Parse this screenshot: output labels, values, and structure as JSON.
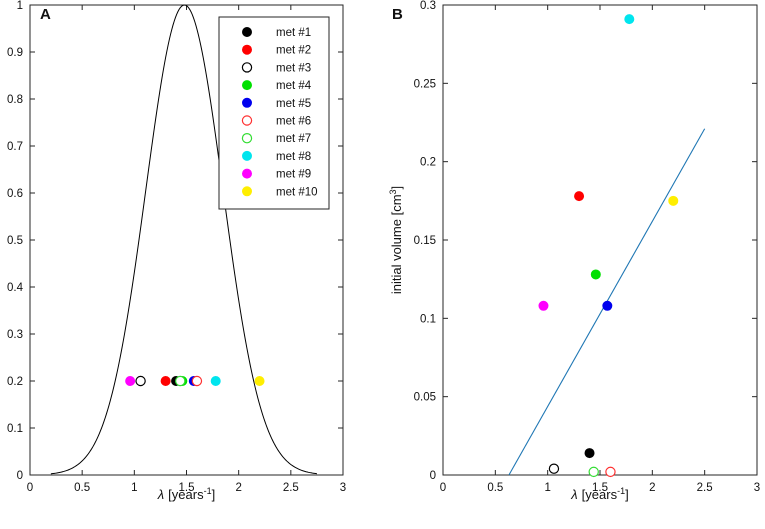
{
  "chart_data": [
    {
      "type": "line",
      "panel_label": "A",
      "xlabel_prefix": "λ",
      "xlabel_units": "[years",
      "xlabel_exp": "-1",
      "xlabel_close": "]",
      "ylabel": "",
      "xlim": [
        0,
        3
      ],
      "ylim": [
        0,
        1
      ],
      "xticks": [
        "0",
        "0.5",
        "1",
        "1.5",
        "2",
        "2.5",
        "3"
      ],
      "yticks": [
        "0",
        "0.1",
        "0.2",
        "0.3",
        "0.4",
        "0.5",
        "0.6",
        "0.7",
        "0.8",
        "0.9",
        "1"
      ],
      "curve": {
        "name": "density",
        "color": "#000000",
        "shape": "gaussian",
        "x_range": [
          0.2,
          2.75
        ],
        "peak_x": 1.48,
        "peak_y": 1.0,
        "sigma": 0.37
      },
      "points": [
        {
          "name": "met #1",
          "x": 1.4,
          "y": 0.2
        },
        {
          "name": "met #2",
          "x": 1.3,
          "y": 0.2
        },
        {
          "name": "met #3",
          "x": 1.06,
          "y": 0.2
        },
        {
          "name": "met #4",
          "x": 1.46,
          "y": 0.2
        },
        {
          "name": "met #5",
          "x": 1.57,
          "y": 0.2
        },
        {
          "name": "met #6",
          "x": 1.6,
          "y": 0.2
        },
        {
          "name": "met #7",
          "x": 1.44,
          "y": 0.2
        },
        {
          "name": "met #8",
          "x": 1.78,
          "y": 0.2
        },
        {
          "name": "met #9",
          "x": 0.96,
          "y": 0.2
        },
        {
          "name": "met #10",
          "x": 2.2,
          "y": 0.2
        }
      ],
      "legend": {
        "position": "top-right",
        "entries": [
          {
            "label": "met #1",
            "color": "#000000",
            "filled": true
          },
          {
            "label": "met #2",
            "color": "#ff0000",
            "filled": true
          },
          {
            "label": "met #3",
            "color": "#000000",
            "filled": false
          },
          {
            "label": "met #4",
            "color": "#00e000",
            "filled": true
          },
          {
            "label": "met #5",
            "color": "#0000ee",
            "filled": true
          },
          {
            "label": "met #6",
            "color": "#ff3030",
            "filled": false
          },
          {
            "label": "met #7",
            "color": "#33dd33",
            "filled": false
          },
          {
            "label": "met #8",
            "color": "#00e5ee",
            "filled": true
          },
          {
            "label": "met #9",
            "color": "#ff00ff",
            "filled": true
          },
          {
            "label": "met #10",
            "color": "#ffee00",
            "filled": true
          }
        ]
      }
    },
    {
      "type": "scatter",
      "panel_label": "B",
      "xlabel_prefix": "λ",
      "xlabel_units": "[years",
      "xlabel_exp": "-1",
      "xlabel_close": "]",
      "ylabel_main": "initial volume [cm",
      "ylabel_exp": "3",
      "ylabel_close": "]",
      "xlim": [
        0,
        3
      ],
      "ylim": [
        0,
        0.3
      ],
      "xticks": [
        "0",
        "0.5",
        "1",
        "1.5",
        "2",
        "2.5",
        "3"
      ],
      "yticks": [
        "0",
        "0.05",
        "0.1",
        "0.15",
        "0.2",
        "0.25",
        "0.3"
      ],
      "points": [
        {
          "name": "met #1",
          "x": 1.4,
          "y": 0.014
        },
        {
          "name": "met #2",
          "x": 1.3,
          "y": 0.178
        },
        {
          "name": "met #3",
          "x": 1.06,
          "y": 0.004
        },
        {
          "name": "met #4",
          "x": 1.46,
          "y": 0.128
        },
        {
          "name": "met #5",
          "x": 1.57,
          "y": 0.108
        },
        {
          "name": "met #6",
          "x": 1.6,
          "y": 0.002
        },
        {
          "name": "met #7",
          "x": 1.44,
          "y": 0.002
        },
        {
          "name": "met #8",
          "x": 1.78,
          "y": 0.291
        },
        {
          "name": "met #9",
          "x": 0.96,
          "y": 0.108
        },
        {
          "name": "met #10",
          "x": 2.2,
          "y": 0.175
        }
      ],
      "fit_line": {
        "name": "linear-fit",
        "color": "#1f77b4",
        "x": [
          0.63,
          2.5
        ],
        "y": [
          0.0,
          0.221
        ]
      }
    }
  ]
}
